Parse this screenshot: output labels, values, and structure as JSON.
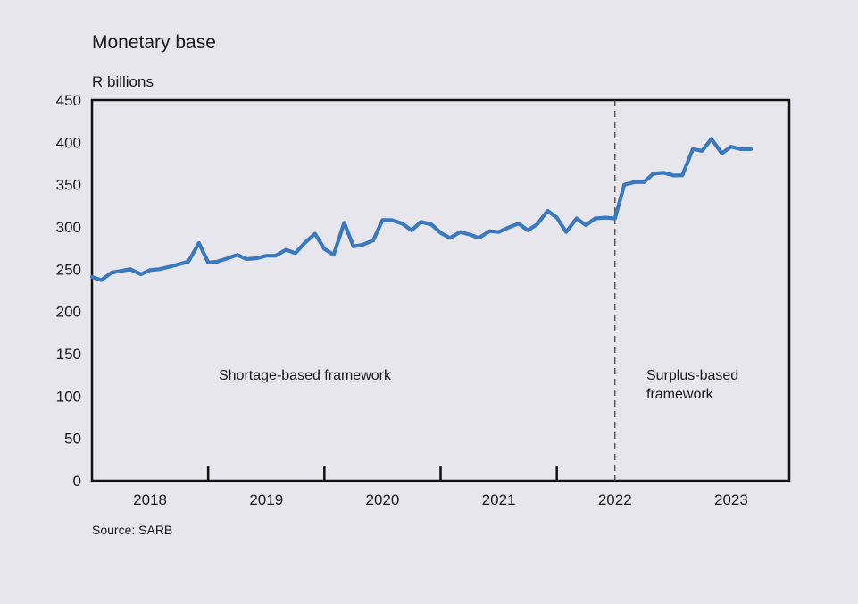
{
  "chart_data": {
    "type": "line",
    "title": "Monetary base",
    "ylabel": "R billions",
    "xlabel": "",
    "source": "Source: SARB",
    "ylim": [
      0,
      450
    ],
    "yticks": [
      0,
      50,
      100,
      150,
      200,
      250,
      300,
      350,
      400,
      450
    ],
    "xlim": [
      2017.5,
      2023.5
    ],
    "year_labels": [
      "2018",
      "2019",
      "2020",
      "2021",
      "2022",
      "2023"
    ],
    "year_boundaries": [
      2019,
      2020,
      2021,
      2022
    ],
    "framework_switch": 2022,
    "annotations": {
      "shortage": "Shortage-based framework",
      "surplus_line1": "Surplus-based",
      "surplus_line2": "framework"
    },
    "line_color": "#3a78bf",
    "series": [
      {
        "x": [
          2017.5,
          2017.58,
          2017.67,
          2017.75,
          2017.83,
          2017.92,
          2018.0,
          2018.08,
          2018.17,
          2018.25,
          2018.33,
          2018.42,
          2018.5,
          2018.58,
          2018.67,
          2018.75,
          2018.83,
          2018.92,
          2019.0,
          2019.08,
          2019.17,
          2019.25,
          2019.33,
          2019.42,
          2019.5,
          2019.58,
          2019.67,
          2019.75,
          2019.83,
          2019.92,
          2020.0,
          2020.08,
          2020.17,
          2020.25,
          2020.33,
          2020.42,
          2020.5,
          2020.58,
          2020.67,
          2020.75,
          2020.83,
          2020.92,
          2021.0,
          2021.08,
          2021.17,
          2021.25,
          2021.33,
          2021.42,
          2021.5,
          2021.58,
          2021.67,
          2021.75,
          2021.83,
          2021.92,
          2022.0,
          2022.08,
          2022.17,
          2022.25,
          2022.33,
          2022.42,
          2022.5,
          2022.58,
          2022.67,
          2022.75,
          2022.83,
          2022.92,
          2023.0,
          2023.08,
          2023.17
        ],
        "values": [
          241,
          237,
          246,
          248,
          250,
          244,
          249,
          250,
          253,
          256,
          259,
          281,
          258,
          259,
          263,
          267,
          262,
          263,
          266,
          266,
          273,
          269,
          281,
          292,
          274,
          267,
          305,
          277,
          279,
          284,
          308,
          308,
          304,
          296,
          306,
          303,
          293,
          287,
          294,
          291,
          287,
          295,
          294,
          299,
          304,
          296,
          303,
          319,
          311,
          294,
          310,
          302,
          310,
          311,
          310,
          350,
          353,
          353,
          363,
          364,
          361,
          361,
          392,
          390,
          404,
          387,
          395,
          392,
          392
        ]
      }
    ]
  }
}
